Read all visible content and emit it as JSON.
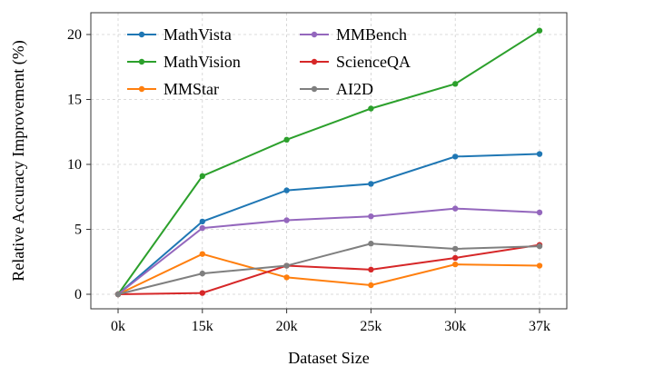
{
  "chart_data": {
    "type": "line",
    "title": "",
    "xlabel": "Dataset Size",
    "ylabel": "Relative Accuracy Improvement (%)",
    "x_tick_labels": [
      "0k",
      "15k",
      "20k",
      "25k",
      "30k",
      "37k"
    ],
    "y_ticks": [
      0,
      5,
      10,
      15,
      20
    ],
    "ylim": [
      -1.2,
      21.7
    ],
    "grid": true,
    "legend_position": "upper-left, two columns, no frame",
    "series": [
      {
        "name": "MathVista",
        "color": "#1f77b4",
        "values": [
          0,
          5.6,
          8.0,
          8.5,
          10.6,
          10.8
        ]
      },
      {
        "name": "MathVision",
        "color": "#2ca02c",
        "values": [
          0,
          9.1,
          11.9,
          14.3,
          16.2,
          20.3
        ]
      },
      {
        "name": "MMStar",
        "color": "#ff7f0e",
        "values": [
          0,
          3.1,
          1.3,
          0.7,
          2.3,
          2.2
        ]
      },
      {
        "name": "MMBench",
        "color": "#9467bd",
        "values": [
          0,
          5.1,
          5.7,
          6.0,
          6.6,
          6.3
        ]
      },
      {
        "name": "ScienceQA",
        "color": "#d62728",
        "values": [
          0,
          0.1,
          2.2,
          1.9,
          2.8,
          3.8
        ]
      },
      {
        "name": "AI2D",
        "color": "#7f7f7f",
        "values": [
          0,
          1.6,
          2.2,
          3.9,
          3.5,
          3.7
        ]
      }
    ]
  }
}
